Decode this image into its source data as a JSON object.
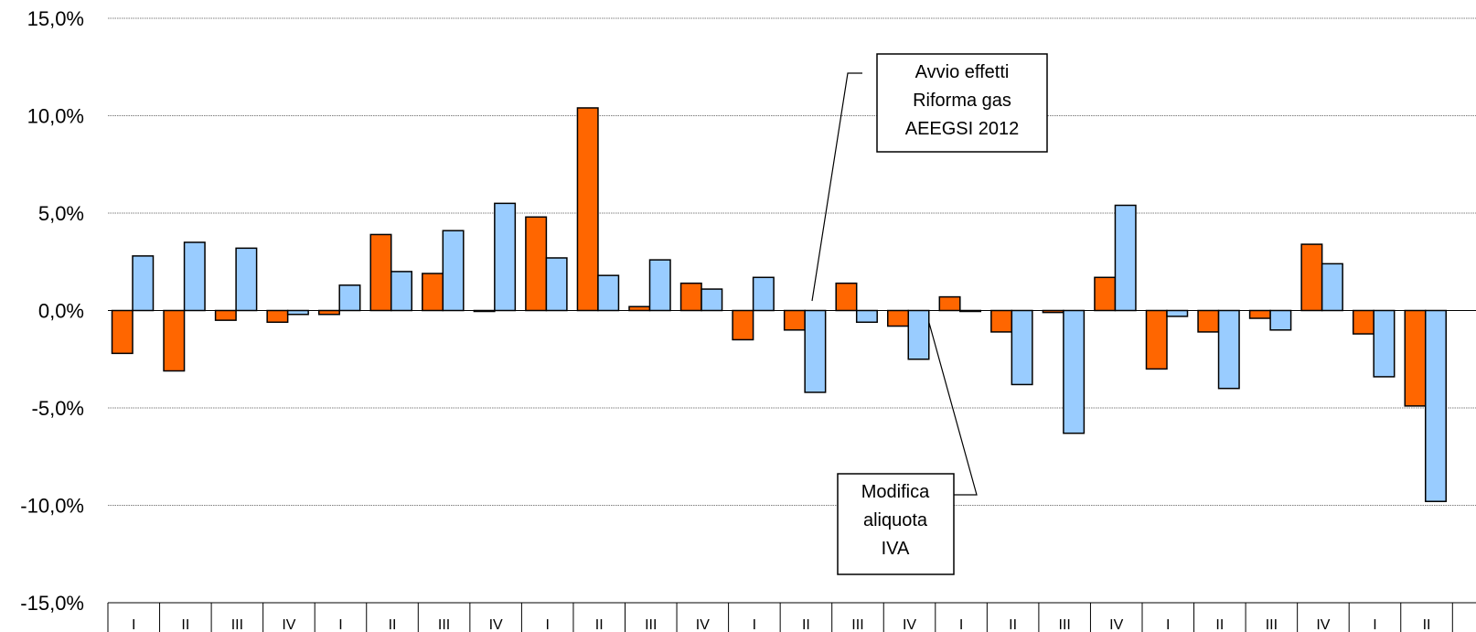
{
  "chart_data": {
    "type": "bar",
    "title": "",
    "xlabel": "",
    "ylabel": "",
    "ylim": [
      -15,
      15
    ],
    "yticks": [
      15,
      10,
      5,
      0,
      -5,
      -10,
      -15
    ],
    "ytick_labels": [
      "15,0%",
      "10,0%",
      "5,0%",
      "0,0%",
      "-5,0%",
      "-10,0%",
      "-15,0%"
    ],
    "grid": true,
    "categories": [
      "I",
      "II",
      "III",
      "IV",
      "I",
      "II",
      "III",
      "IV",
      "I",
      "II",
      "III",
      "IV",
      "I",
      "II",
      "III",
      "IV",
      "I",
      "II",
      "III",
      "IV",
      "I",
      "II",
      "III",
      "IV",
      "I",
      "II"
    ],
    "series": [
      {
        "color": "#FF6600",
        "values": [
          -2.2,
          -3.1,
          -0.5,
          -0.6,
          -0.2,
          3.9,
          1.9,
          0.0,
          4.8,
          10.4,
          0.2,
          1.4,
          -1.5,
          -1.0,
          1.4,
          -0.8,
          0.7,
          -1.1,
          -0.1,
          1.7,
          -3.0,
          -1.1,
          -0.4,
          3.4,
          -1.2,
          -4.9
        ]
      },
      {
        "color": "#99CCFF",
        "values": [
          2.8,
          3.5,
          3.2,
          -0.2,
          1.3,
          2.0,
          4.1,
          5.5,
          2.7,
          1.8,
          2.6,
          1.1,
          1.7,
          -4.2,
          -0.6,
          -2.5,
          0.0,
          -3.8,
          -6.3,
          5.4,
          -0.3,
          -4.0,
          -1.0,
          2.4,
          -3.4,
          -9.8
        ]
      }
    ],
    "annotations": [
      {
        "lines": [
          "Avvio effetti",
          "Riforma gas",
          "AEEGSI 2012"
        ],
        "points_to_category": 13
      },
      {
        "lines": [
          "Modifica",
          "aliquota",
          "IVA"
        ],
        "points_to_category": 15
      }
    ]
  }
}
